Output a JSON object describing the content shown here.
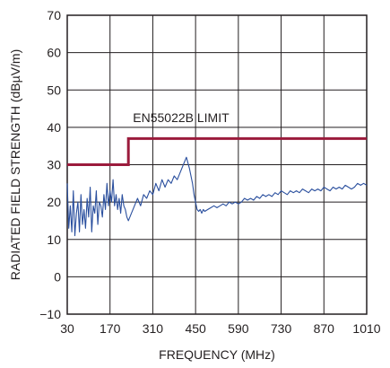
{
  "chart_data": {
    "type": "line",
    "xlabel": "FREQUENCY (MHz)",
    "ylabel": "RADIATED FIELD STRENGTH (dBµV/m)",
    "xlim": [
      30,
      1010
    ],
    "ylim": [
      -10,
      70
    ],
    "x_ticks": [
      30,
      170,
      310,
      450,
      590,
      730,
      870,
      1010
    ],
    "y_ticks": [
      -10,
      0,
      10,
      20,
      30,
      40,
      50,
      60,
      70
    ],
    "x_tick_labels": [
      "30",
      "170",
      "310",
      "450",
      "590",
      "730",
      "870",
      "1010"
    ],
    "y_tick_labels": [
      "−10",
      "0",
      "10",
      "20",
      "30",
      "40",
      "50",
      "60",
      "70"
    ],
    "grid": true,
    "annotations": [
      {
        "text": "EN55022B LIMIT",
        "x": 245,
        "y": 40
      }
    ],
    "series": [
      {
        "role": "limit",
        "color": "#9b1b3c",
        "x": [
          30,
          230,
          230,
          1010
        ],
        "y": [
          30,
          30,
          37,
          37
        ]
      },
      {
        "role": "measured",
        "color": "#2a4f9e",
        "x": [
          30,
          35,
          40,
          45,
          50,
          55,
          60,
          65,
          70,
          75,
          80,
          85,
          90,
          95,
          100,
          105,
          110,
          115,
          120,
          125,
          130,
          135,
          140,
          145,
          150,
          155,
          160,
          165,
          170,
          175,
          180,
          185,
          190,
          195,
          200,
          205,
          210,
          215,
          220,
          225,
          230,
          240,
          250,
          260,
          270,
          280,
          290,
          300,
          310,
          320,
          330,
          340,
          350,
          360,
          370,
          380,
          390,
          400,
          410,
          420,
          430,
          435,
          440,
          445,
          450,
          455,
          460,
          465,
          470,
          475,
          480,
          490,
          500,
          510,
          520,
          530,
          540,
          550,
          560,
          570,
          580,
          590,
          600,
          610,
          620,
          630,
          640,
          650,
          660,
          670,
          680,
          690,
          700,
          710,
          720,
          730,
          740,
          750,
          760,
          770,
          780,
          790,
          800,
          810,
          820,
          830,
          840,
          850,
          860,
          870,
          880,
          890,
          900,
          910,
          920,
          930,
          940,
          950,
          960,
          970,
          980,
          990,
          1000,
          1010
        ],
        "y": [
          25,
          13,
          19,
          12,
          23,
          11,
          17,
          20,
          12,
          22,
          14,
          18,
          13,
          21,
          16,
          24,
          12,
          19,
          17,
          23,
          14,
          20,
          19,
          16,
          22,
          18,
          25,
          19,
          23,
          20,
          26,
          19,
          22,
          18,
          21,
          17,
          22,
          19,
          18,
          16,
          15,
          17,
          19,
          21,
          19,
          22,
          21,
          23,
          22,
          25,
          23,
          26,
          24,
          26,
          25,
          27,
          26,
          28,
          30,
          32,
          29,
          27,
          25,
          22,
          20,
          18,
          17.5,
          18,
          17,
          18,
          17.5,
          18,
          18.5,
          19,
          18.5,
          19,
          19.5,
          19,
          20,
          19.5,
          20,
          19.5,
          20,
          21,
          20.5,
          21,
          20.5,
          21.5,
          21,
          22,
          21.5,
          22,
          21.5,
          22.5,
          22,
          23,
          22.5,
          22,
          23,
          22.5,
          23,
          22.5,
          23.5,
          23,
          22.5,
          23.5,
          23,
          23.5,
          23,
          24,
          23.5,
          23,
          24,
          23.5,
          24,
          23.5,
          24.5,
          24,
          23.5,
          24,
          25,
          24.5,
          25,
          24.5
        ]
      }
    ]
  }
}
